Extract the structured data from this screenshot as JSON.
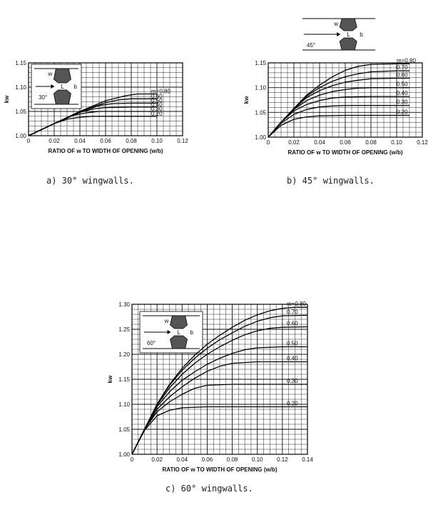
{
  "chart_data": [
    {
      "type": "line",
      "id": "a",
      "caption": "a) 30° wingwalls.",
      "xlabel": "RATIO OF w TO WIDTH OF OPENING (w/b)",
      "ylabel": "kw",
      "xlim": [
        0,
        0.12
      ],
      "ylim": [
        1.0,
        1.15
      ],
      "xticks": [
        "0",
        "0.02",
        "0.04",
        "0.06",
        "0.08",
        "0.10",
        "0.12"
      ],
      "yticks": [
        "1.00",
        "1.05",
        "1.10",
        "1.15"
      ],
      "grid": true,
      "inset_angle": "30°",
      "inset_labels": [
        "w",
        "L",
        "b"
      ],
      "series": [
        {
          "name": "m=0.80",
          "x": [
            0,
            0.02,
            0.04,
            0.06,
            0.075,
            0.085,
            0.1
          ],
          "y": [
            1.0,
            1.025,
            1.05,
            1.072,
            1.082,
            1.086,
            1.086
          ]
        },
        {
          "name": "0.60",
          "x": [
            0,
            0.02,
            0.04,
            0.06,
            0.07,
            0.08,
            0.1
          ],
          "y": [
            1.0,
            1.025,
            1.05,
            1.068,
            1.074,
            1.076,
            1.076
          ]
        },
        {
          "name": "0.50",
          "x": [
            0,
            0.02,
            0.04,
            0.055,
            0.065,
            0.08,
            0.1
          ],
          "y": [
            1.0,
            1.025,
            1.049,
            1.062,
            1.066,
            1.067,
            1.067
          ]
        },
        {
          "name": "0.40",
          "x": [
            0,
            0.02,
            0.04,
            0.05,
            0.06,
            0.08,
            0.1
          ],
          "y": [
            1.0,
            1.025,
            1.048,
            1.055,
            1.058,
            1.059,
            1.059
          ]
        },
        {
          "name": "0.30",
          "x": [
            0,
            0.02,
            0.035,
            0.045,
            0.055,
            0.08,
            0.1
          ],
          "y": [
            1.0,
            1.025,
            1.042,
            1.047,
            1.05,
            1.05,
            1.05
          ]
        },
        {
          "name": "0.20",
          "x": [
            0,
            0.02,
            0.03,
            0.04,
            0.05,
            0.08,
            0.1
          ],
          "y": [
            1.0,
            1.025,
            1.034,
            1.038,
            1.04,
            1.04,
            1.04
          ]
        }
      ]
    },
    {
      "type": "line",
      "id": "b",
      "caption": "b) 45° wingwalls.",
      "xlabel": "RATIO OF w TO WIDTH OF OPENING (w/b)",
      "ylabel": "kw",
      "xlim": [
        0,
        0.12
      ],
      "ylim": [
        1.0,
        1.15
      ],
      "xticks": [
        "0",
        "0.02",
        "0.04",
        "0.06",
        "0.08",
        "0.10",
        "0.12"
      ],
      "yticks": [
        "1.00",
        "1.05",
        "1.10",
        "1.15"
      ],
      "grid": true,
      "inset_angle": "45°",
      "inset_labels": [
        "w",
        "L",
        "b"
      ],
      "series": [
        {
          "name": "m=0.80",
          "x": [
            0,
            0.01,
            0.02,
            0.03,
            0.04,
            0.05,
            0.06,
            0.07,
            0.08,
            0.1,
            0.11
          ],
          "y": [
            1.0,
            1.03,
            1.058,
            1.085,
            1.105,
            1.122,
            1.135,
            1.143,
            1.147,
            1.148,
            1.148
          ]
        },
        {
          "name": "0.70",
          "x": [
            0,
            0.01,
            0.02,
            0.03,
            0.04,
            0.05,
            0.06,
            0.07,
            0.08,
            0.1,
            0.11
          ],
          "y": [
            1.0,
            1.03,
            1.058,
            1.083,
            1.1,
            1.113,
            1.122,
            1.128,
            1.132,
            1.134,
            1.134
          ]
        },
        {
          "name": "0.60",
          "x": [
            0,
            0.01,
            0.02,
            0.03,
            0.04,
            0.05,
            0.06,
            0.07,
            0.08,
            0.1,
            0.11
          ],
          "y": [
            1.0,
            1.03,
            1.057,
            1.08,
            1.094,
            1.104,
            1.111,
            1.115,
            1.118,
            1.119,
            1.119
          ]
        },
        {
          "name": "0.50",
          "x": [
            0,
            0.01,
            0.02,
            0.03,
            0.04,
            0.05,
            0.06,
            0.07,
            0.08,
            0.1,
            0.11
          ],
          "y": [
            1.0,
            1.03,
            1.056,
            1.074,
            1.085,
            1.092,
            1.096,
            1.099,
            1.1,
            1.1,
            1.1
          ]
        },
        {
          "name": "0.40",
          "x": [
            0,
            0.01,
            0.02,
            0.03,
            0.04,
            0.05,
            0.06,
            0.08,
            0.1,
            0.11
          ],
          "y": [
            1.0,
            1.03,
            1.053,
            1.066,
            1.074,
            1.079,
            1.081,
            1.082,
            1.082,
            1.082
          ]
        },
        {
          "name": "0.30",
          "x": [
            0,
            0.01,
            0.02,
            0.03,
            0.04,
            0.05,
            0.06,
            0.08,
            0.1,
            0.11
          ],
          "y": [
            1.0,
            1.028,
            1.046,
            1.056,
            1.061,
            1.063,
            1.064,
            1.064,
            1.064,
            1.064
          ]
        },
        {
          "name": "0.20",
          "x": [
            0,
            0.01,
            0.02,
            0.03,
            0.04,
            0.06,
            0.08,
            0.1,
            0.11
          ],
          "y": [
            1.0,
            1.024,
            1.036,
            1.041,
            1.043,
            1.044,
            1.044,
            1.044,
            1.044
          ]
        }
      ]
    },
    {
      "type": "line",
      "id": "c",
      "caption": "c) 60° wingwalls.",
      "xlabel": "RATIO OF w TO WIDTH OF OPENING (w/b)",
      "ylabel": "kw",
      "xlim": [
        0,
        0.14
      ],
      "ylim": [
        1.0,
        1.3
      ],
      "xticks": [
        "0",
        "0.02",
        "0.04",
        "0.06",
        "0.08",
        "0.10",
        "0.12",
        "0.14"
      ],
      "yticks": [
        "1.00",
        "1.05",
        "1.10",
        "1.15",
        "1.20",
        "1.25",
        "1.30"
      ],
      "grid": true,
      "inset_angle": "60°",
      "inset_labels": [
        "w",
        "L",
        "b"
      ],
      "series": [
        {
          "name": "m=0.80",
          "x": [
            0,
            0.01,
            0.02,
            0.03,
            0.04,
            0.05,
            0.06,
            0.07,
            0.08,
            0.09,
            0.1,
            0.11,
            0.12,
            0.13,
            0.14
          ],
          "y": [
            1.0,
            1.05,
            1.1,
            1.14,
            1.172,
            1.198,
            1.22,
            1.238,
            1.254,
            1.268,
            1.279,
            1.287,
            1.292,
            1.294,
            1.294
          ]
        },
        {
          "name": "0.70",
          "x": [
            0,
            0.01,
            0.02,
            0.03,
            0.04,
            0.05,
            0.06,
            0.07,
            0.08,
            0.09,
            0.1,
            0.11,
            0.12,
            0.14
          ],
          "y": [
            1.0,
            1.05,
            1.1,
            1.138,
            1.168,
            1.192,
            1.212,
            1.229,
            1.243,
            1.256,
            1.266,
            1.273,
            1.277,
            1.278
          ]
        },
        {
          "name": "0.60",
          "x": [
            0,
            0.01,
            0.02,
            0.03,
            0.04,
            0.05,
            0.06,
            0.07,
            0.08,
            0.09,
            0.1,
            0.11,
            0.12,
            0.14
          ],
          "y": [
            1.0,
            1.05,
            1.098,
            1.133,
            1.16,
            1.182,
            1.2,
            1.215,
            1.228,
            1.239,
            1.247,
            1.252,
            1.254,
            1.255
          ]
        },
        {
          "name": "0.50",
          "x": [
            0,
            0.01,
            0.02,
            0.03,
            0.04,
            0.05,
            0.06,
            0.07,
            0.08,
            0.09,
            0.1,
            0.12,
            0.14
          ],
          "y": [
            1.0,
            1.05,
            1.095,
            1.125,
            1.148,
            1.165,
            1.18,
            1.192,
            1.202,
            1.209,
            1.213,
            1.215,
            1.215
          ]
        },
        {
          "name": "0.40",
          "x": [
            0,
            0.01,
            0.02,
            0.03,
            0.04,
            0.05,
            0.06,
            0.07,
            0.08,
            0.1,
            0.12,
            0.14
          ],
          "y": [
            1.0,
            1.05,
            1.09,
            1.115,
            1.135,
            1.152,
            1.166,
            1.176,
            1.182,
            1.185,
            1.185,
            1.185
          ]
        },
        {
          "name": "0.30",
          "x": [
            0,
            0.01,
            0.02,
            0.03,
            0.04,
            0.05,
            0.06,
            0.08,
            0.1,
            0.12,
            0.14
          ],
          "y": [
            1.0,
            1.05,
            1.085,
            1.105,
            1.12,
            1.132,
            1.138,
            1.14,
            1.14,
            1.14,
            1.14
          ]
        },
        {
          "name": "0.20",
          "x": [
            0,
            0.01,
            0.02,
            0.03,
            0.04,
            0.06,
            0.08,
            0.1,
            0.12,
            0.14
          ],
          "y": [
            1.0,
            1.048,
            1.077,
            1.088,
            1.093,
            1.095,
            1.095,
            1.095,
            1.095,
            1.095
          ]
        }
      ]
    }
  ]
}
